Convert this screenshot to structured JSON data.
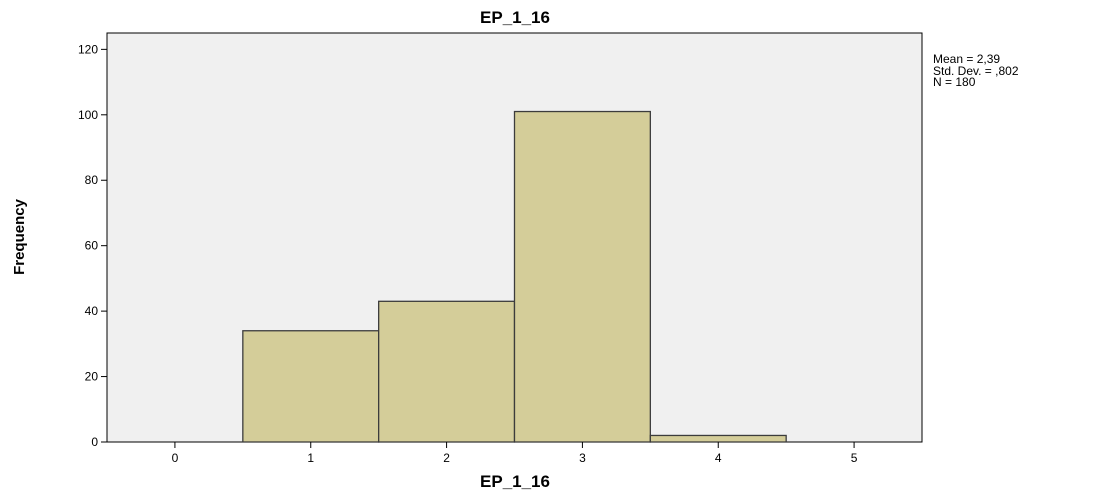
{
  "chart_data": {
    "type": "bar",
    "title": "EP_1_16",
    "xlabel": "EP_1_16",
    "ylabel": "Frequency",
    "bins": [
      {
        "start": 0.5,
        "end": 1.5,
        "value": 34
      },
      {
        "start": 1.5,
        "end": 2.5,
        "value": 43
      },
      {
        "start": 2.5,
        "end": 3.5,
        "value": 101
      },
      {
        "start": 3.5,
        "end": 4.5,
        "value": 2
      }
    ],
    "xlim": [
      -0.5,
      5.5
    ],
    "ylim": [
      0,
      125
    ],
    "x_ticks": [
      0,
      1,
      2,
      3,
      4,
      5
    ],
    "y_ticks": [
      0,
      20,
      40,
      60,
      80,
      100,
      120
    ],
    "grid": false,
    "stats": {
      "mean": "Mean = 2,39",
      "std_dev": "Std. Dev. = ,802",
      "n": "N = 180"
    },
    "colors": {
      "bar_fill": "#d4cd99",
      "bar_stroke": "#3c3c3c",
      "plot_background": "#f0f0f0"
    }
  }
}
